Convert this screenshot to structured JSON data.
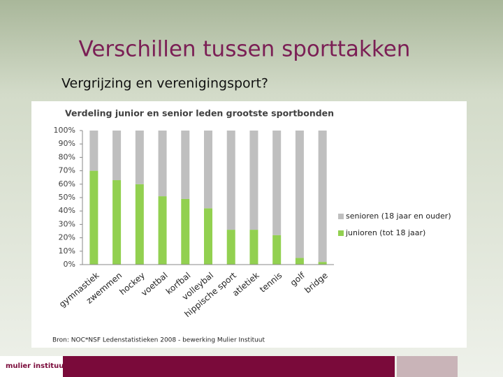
{
  "slide": {
    "title": "Verschillen tussen sporttakken",
    "subtitle": "Vergrijzing en verenigingsport?",
    "logo": "mulier instituut"
  },
  "chart_data": {
    "type": "bar",
    "stacked": true,
    "title": "Verdeling junior en senior leden grootste sportbonden",
    "source": "Bron: NOC*NSF Ledenstatistieken 2008 - bewerking Mulier Instituut",
    "categories": [
      "gymnastiek",
      "zwemmen",
      "hockey",
      "voetbal",
      "korfbal",
      "volleybal",
      "hippische sport",
      "atletiek",
      "tennis",
      "golf",
      "bridge"
    ],
    "series": [
      {
        "name": "junioren (tot 18 jaar)",
        "color": "#92d050",
        "values": [
          70,
          63,
          60,
          51,
          49,
          42,
          26,
          26,
          22,
          5,
          2
        ]
      },
      {
        "name": "senioren (18 jaar en ouder)",
        "color": "#bfbfbf",
        "values": [
          30,
          37,
          40,
          49,
          51,
          58,
          74,
          74,
          78,
          95,
          98
        ]
      }
    ],
    "ylim": [
      0,
      100
    ],
    "yticks": [
      {
        "value": 0,
        "label": "0%"
      },
      {
        "value": 10,
        "label": "10%"
      },
      {
        "value": 20,
        "label": "20%"
      },
      {
        "value": 30,
        "label": "30%"
      },
      {
        "value": 40,
        "label": "40%"
      },
      {
        "value": 50,
        "label": "50%"
      },
      {
        "value": 60,
        "label": "60%"
      },
      {
        "value": 70,
        "label": "70%"
      },
      {
        "value": 80,
        "label": "80%"
      },
      {
        "value": 90,
        "label": "90%"
      },
      {
        "value": 100,
        "label": "100%"
      }
    ],
    "grid": false,
    "legend": "right"
  }
}
